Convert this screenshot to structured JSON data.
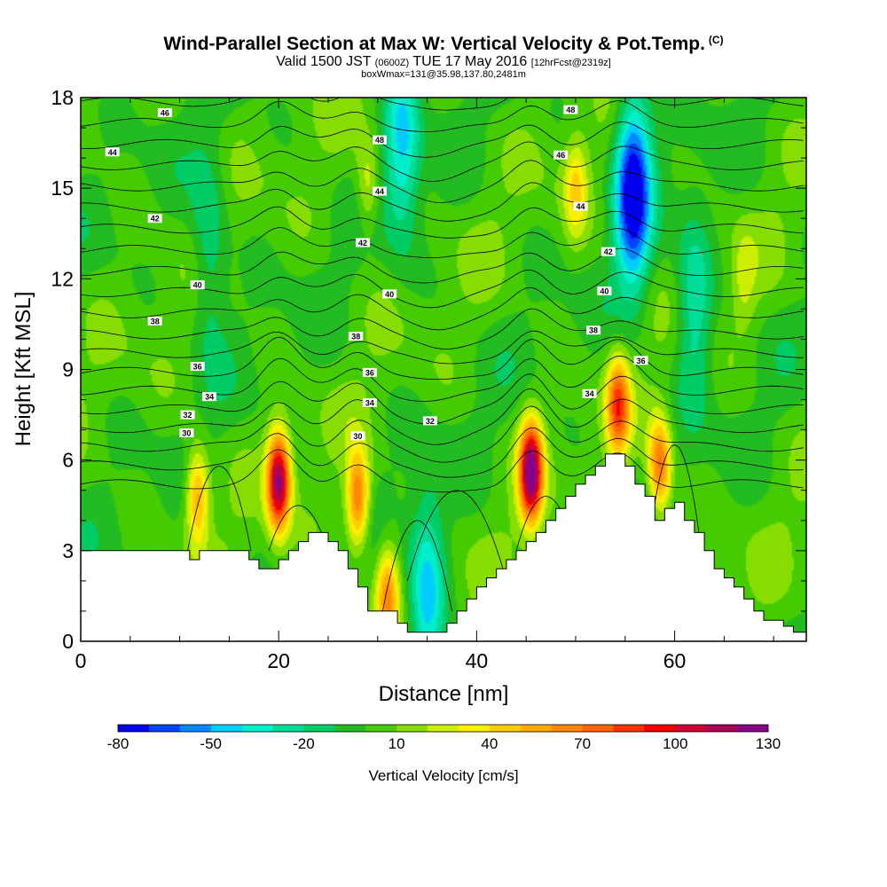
{
  "header": {
    "title": "Wind-Parallel Section at Max W: Vertical Velocity & Pot.Temp.",
    "title_unit": "(C)",
    "subtitle_pre": "Valid 1500 JST",
    "subtitle_small1": "(0600Z)",
    "subtitle_post": "TUE 17 May 2016",
    "subtitle_small2": "[12hrFcst@2319z]",
    "subtitle_line3": "boxWmax=131@35.98,137.80,2481m"
  },
  "chart_data": {
    "type": "heatmap",
    "title": "Wind-Parallel Section at Max W: Vertical Velocity & Pot.Temp.",
    "xlabel": "Distance [nm]",
    "ylabel": "Height [Kft MSL]",
    "xlim": [
      0,
      73.3
    ],
    "ylim": [
      0,
      18
    ],
    "x_ticks": [
      0,
      20,
      40,
      60
    ],
    "y_ticks": [
      0,
      3,
      6,
      9,
      12,
      15,
      18
    ],
    "colorbar": {
      "label": "Vertical Velocity [cm/s]",
      "tick_labels": [
        "-80",
        "-50",
        "-20",
        "10",
        "40",
        "70",
        "100",
        "130"
      ],
      "tick_values": [
        -80,
        -50,
        -20,
        10,
        40,
        70,
        100,
        130
      ],
      "levels": [
        -80,
        -70,
        -60,
        -50,
        -40,
        -30,
        -20,
        -10,
        0,
        10,
        20,
        30,
        40,
        50,
        60,
        70,
        80,
        90,
        100,
        110,
        120,
        130
      ],
      "colors": [
        "#0000ee",
        "#0044ff",
        "#0088ff",
        "#00ccff",
        "#00eecc",
        "#00dd99",
        "#00cc66",
        "#22bb22",
        "#44cc00",
        "#88dd00",
        "#ccee00",
        "#ffee00",
        "#ffcc00",
        "#ffaa00",
        "#ff8800",
        "#ff6600",
        "#ff3300",
        "#ee0000",
        "#cc0033",
        "#aa0055",
        "#880088"
      ]
    },
    "updrafts": [
      {
        "x": 11.8,
        "z": 4.8,
        "w": 60
      },
      {
        "x": 20.0,
        "z": 5.3,
        "w": 120
      },
      {
        "x": 28.0,
        "z": 4.7,
        "w": 75
      },
      {
        "x": 31.0,
        "z": 1.6,
        "w": 60
      },
      {
        "x": 45.5,
        "z": 5.6,
        "w": 131
      },
      {
        "x": 54.3,
        "z": 7.8,
        "w": 80
      },
      {
        "x": 58.5,
        "z": 5.8,
        "w": 75
      },
      {
        "x": 50.0,
        "z": 15.0,
        "w": 40
      },
      {
        "x": 29.0,
        "z": 15.0,
        "w": 30
      },
      {
        "x": 67.0,
        "z": 12.0,
        "w": 20
      }
    ],
    "downdrafts": [
      {
        "x": 55.8,
        "z": 15.0,
        "w": -80
      },
      {
        "x": 32.5,
        "z": 16.5,
        "w": -40
      },
      {
        "x": 35.0,
        "z": 1.5,
        "w": -45
      },
      {
        "x": 13.0,
        "z": 13.0,
        "w": -25
      },
      {
        "x": 62.0,
        "z": 11.0,
        "w": -30
      }
    ],
    "terrain_surface": [
      [
        0,
        3.0
      ],
      [
        11,
        3.0
      ],
      [
        11,
        2.7
      ],
      [
        12,
        2.7
      ],
      [
        12,
        3.0
      ],
      [
        17,
        3.0
      ],
      [
        17,
        2.7
      ],
      [
        18,
        2.7
      ],
      [
        18,
        2.4
      ],
      [
        20,
        2.4
      ],
      [
        20,
        2.7
      ],
      [
        21,
        2.7
      ],
      [
        21,
        3.0
      ],
      [
        22,
        3.0
      ],
      [
        22,
        3.3
      ],
      [
        23,
        3.3
      ],
      [
        23,
        3.6
      ],
      [
        25,
        3.6
      ],
      [
        25,
        3.3
      ],
      [
        26,
        3.3
      ],
      [
        26,
        3.0
      ],
      [
        27,
        3.0
      ],
      [
        27,
        2.4
      ],
      [
        28,
        2.4
      ],
      [
        28,
        1.8
      ],
      [
        29,
        1.8
      ],
      [
        29,
        1.0
      ],
      [
        32,
        1.0
      ],
      [
        32,
        0.6
      ],
      [
        33,
        0.6
      ],
      [
        33,
        0.3
      ],
      [
        37,
        0.3
      ],
      [
        37,
        0.6
      ],
      [
        38,
        0.6
      ],
      [
        38,
        1.0
      ],
      [
        39,
        1.0
      ],
      [
        39,
        1.4
      ],
      [
        40,
        1.4
      ],
      [
        40,
        1.8
      ],
      [
        41,
        1.8
      ],
      [
        41,
        2.1
      ],
      [
        42,
        2.1
      ],
      [
        42,
        2.4
      ],
      [
        43,
        2.4
      ],
      [
        43,
        2.7
      ],
      [
        44,
        2.7
      ],
      [
        44,
        3.0
      ],
      [
        45,
        3.0
      ],
      [
        45,
        3.3
      ],
      [
        46,
        3.3
      ],
      [
        46,
        3.6
      ],
      [
        47,
        3.6
      ],
      [
        47,
        4.0
      ],
      [
        48,
        4.0
      ],
      [
        48,
        4.4
      ],
      [
        49,
        4.4
      ],
      [
        49,
        4.8
      ],
      [
        50,
        4.8
      ],
      [
        50,
        5.2
      ],
      [
        51,
        5.2
      ],
      [
        51,
        5.5
      ],
      [
        52,
        5.5
      ],
      [
        52,
        5.8
      ],
      [
        53,
        5.8
      ],
      [
        53,
        6.2
      ],
      [
        55,
        6.2
      ],
      [
        55,
        5.8
      ],
      [
        56,
        5.8
      ],
      [
        56,
        5.2
      ],
      [
        57,
        5.2
      ],
      [
        57,
        4.8
      ],
      [
        58,
        4.8
      ],
      [
        58,
        4.0
      ],
      [
        59,
        4.0
      ],
      [
        59,
        4.4
      ],
      [
        60,
        4.4
      ],
      [
        60,
        4.6
      ],
      [
        61,
        4.6
      ],
      [
        61,
        4.0
      ],
      [
        62,
        4.0
      ],
      [
        62,
        3.6
      ],
      [
        63,
        3.6
      ],
      [
        63,
        3.0
      ],
      [
        64,
        3.0
      ],
      [
        64,
        2.4
      ],
      [
        65,
        2.4
      ],
      [
        65,
        2.1
      ],
      [
        66,
        2.1
      ],
      [
        66,
        1.8
      ],
      [
        67,
        1.8
      ],
      [
        67,
        1.4
      ],
      [
        68,
        1.4
      ],
      [
        68,
        1.0
      ],
      [
        69,
        1.0
      ],
      [
        69,
        0.7
      ],
      [
        71,
        0.7
      ],
      [
        71,
        0.5
      ],
      [
        72,
        0.5
      ],
      [
        72,
        0.3
      ],
      [
        73.3,
        0.3
      ]
    ],
    "theta_contour_labels": [
      {
        "text": "46",
        "x": 8.5,
        "z": 17.5
      },
      {
        "text": "44",
        "x": 3.2,
        "z": 16.2
      },
      {
        "text": "42",
        "x": 7.5,
        "z": 14.0
      },
      {
        "text": "40",
        "x": 11.8,
        "z": 11.8
      },
      {
        "text": "38",
        "x": 7.5,
        "z": 10.6
      },
      {
        "text": "36",
        "x": 11.8,
        "z": 9.1
      },
      {
        "text": "34",
        "x": 13.0,
        "z": 8.1
      },
      {
        "text": "32",
        "x": 10.8,
        "z": 7.5
      },
      {
        "text": "30",
        "x": 10.7,
        "z": 6.9
      },
      {
        "text": "48",
        "x": 30.2,
        "z": 16.6
      },
      {
        "text": "44",
        "x": 30.2,
        "z": 14.9
      },
      {
        "text": "42",
        "x": 28.5,
        "z": 13.2
      },
      {
        "text": "40",
        "x": 31.2,
        "z": 11.5
      },
      {
        "text": "38",
        "x": 27.8,
        "z": 10.1
      },
      {
        "text": "36",
        "x": 29.2,
        "z": 8.9
      },
      {
        "text": "34",
        "x": 29.2,
        "z": 7.9
      },
      {
        "text": "32",
        "x": 35.3,
        "z": 7.3
      },
      {
        "text": "30",
        "x": 28.0,
        "z": 6.8
      },
      {
        "text": "48",
        "x": 49.5,
        "z": 17.6
      },
      {
        "text": "46",
        "x": 48.5,
        "z": 16.1
      },
      {
        "text": "44",
        "x": 50.5,
        "z": 14.4
      },
      {
        "text": "42",
        "x": 53.3,
        "z": 12.9
      },
      {
        "text": "40",
        "x": 52.9,
        "z": 11.6
      },
      {
        "text": "38",
        "x": 51.8,
        "z": 10.3
      },
      {
        "text": "36",
        "x": 56.6,
        "z": 9.3
      },
      {
        "text": "34",
        "x": 51.4,
        "z": 8.2
      }
    ]
  }
}
